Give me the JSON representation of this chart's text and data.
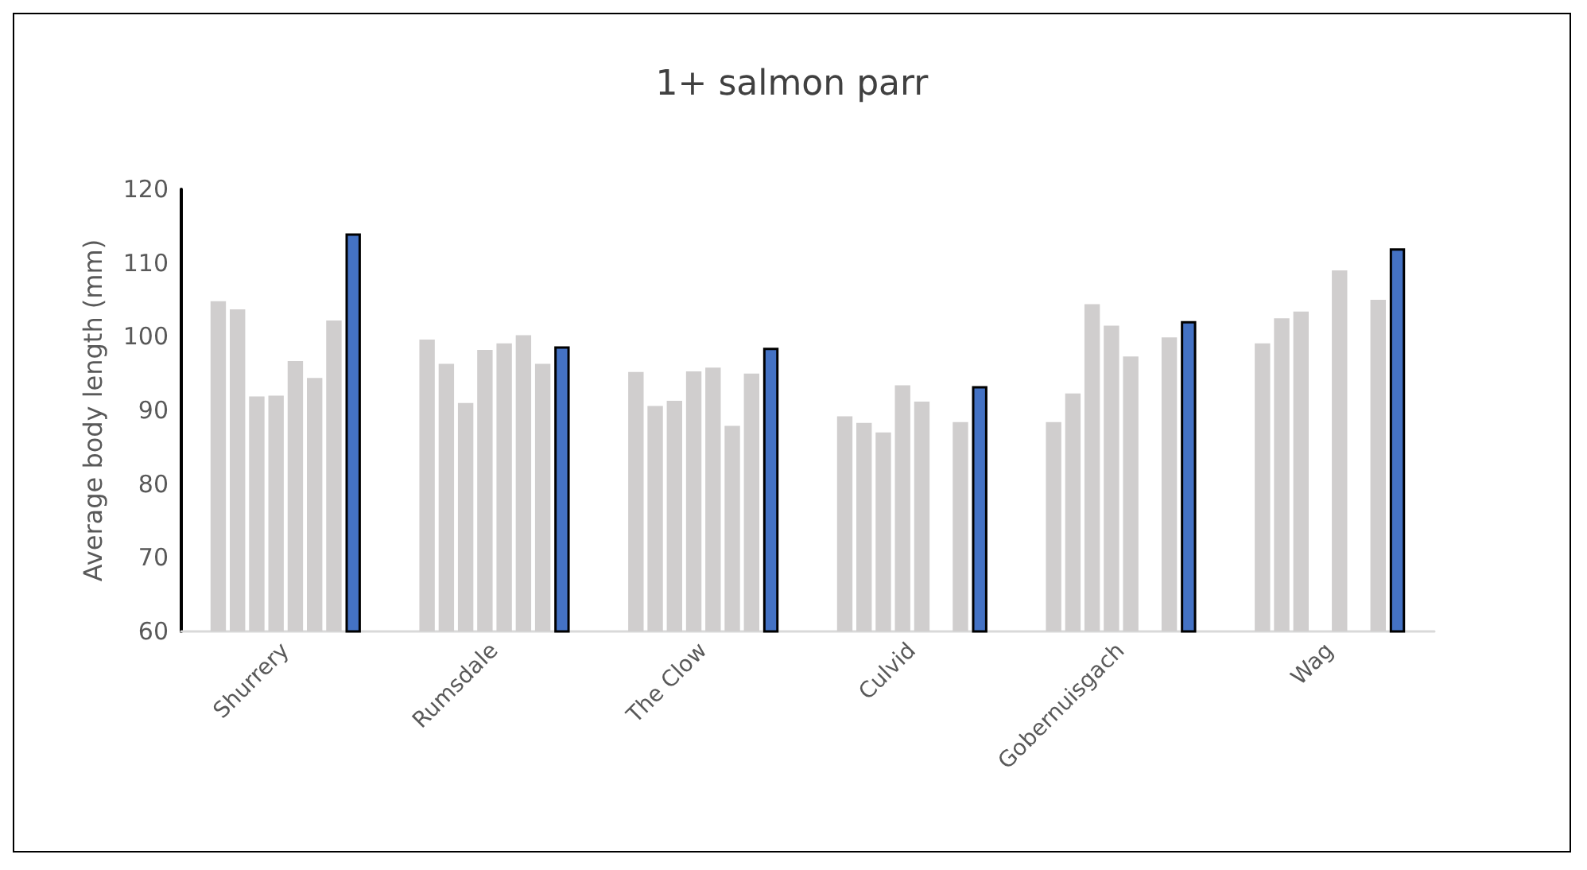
{
  "chart_data": {
    "type": "bar",
    "title": "1+ salmon parr",
    "ylabel": "Average body length (mm)",
    "categories": [
      "Shurrery",
      "Rumsdale",
      "The Clow",
      "Culvid",
      "Gobernuisgach",
      "Wag"
    ],
    "series": [
      {
        "color": "#d0cece",
        "values": [
          104.8,
          99.6,
          95.2,
          89.2,
          88.4,
          99.1
        ]
      },
      {
        "color": "#d0cece",
        "values": [
          103.7,
          96.3,
          90.6,
          88.3,
          92.3,
          102.5
        ]
      },
      {
        "color": "#d0cece",
        "values": [
          91.9,
          91.0,
          91.3,
          87.0,
          104.4,
          103.4
        ]
      },
      {
        "color": "#d0cece",
        "values": [
          92.0,
          98.2,
          95.3,
          93.4,
          101.5,
          null
        ]
      },
      {
        "color": "#d0cece",
        "values": [
          96.7,
          99.1,
          95.8,
          91.2,
          97.3,
          109.0
        ]
      },
      {
        "color": "#d0cece",
        "values": [
          94.4,
          100.2,
          87.9,
          null,
          null,
          null
        ]
      },
      {
        "color": "#d0cece",
        "values": [
          102.2,
          96.3,
          95.0,
          88.4,
          99.9,
          105.0
        ]
      },
      {
        "color": "#4472c4",
        "values": [
          114.0,
          98.7,
          98.5,
          93.3,
          102.1,
          112.0
        ]
      }
    ],
    "ylim": [
      60,
      120
    ],
    "yticks": [
      60,
      70,
      80,
      90,
      100,
      110,
      120
    ]
  }
}
